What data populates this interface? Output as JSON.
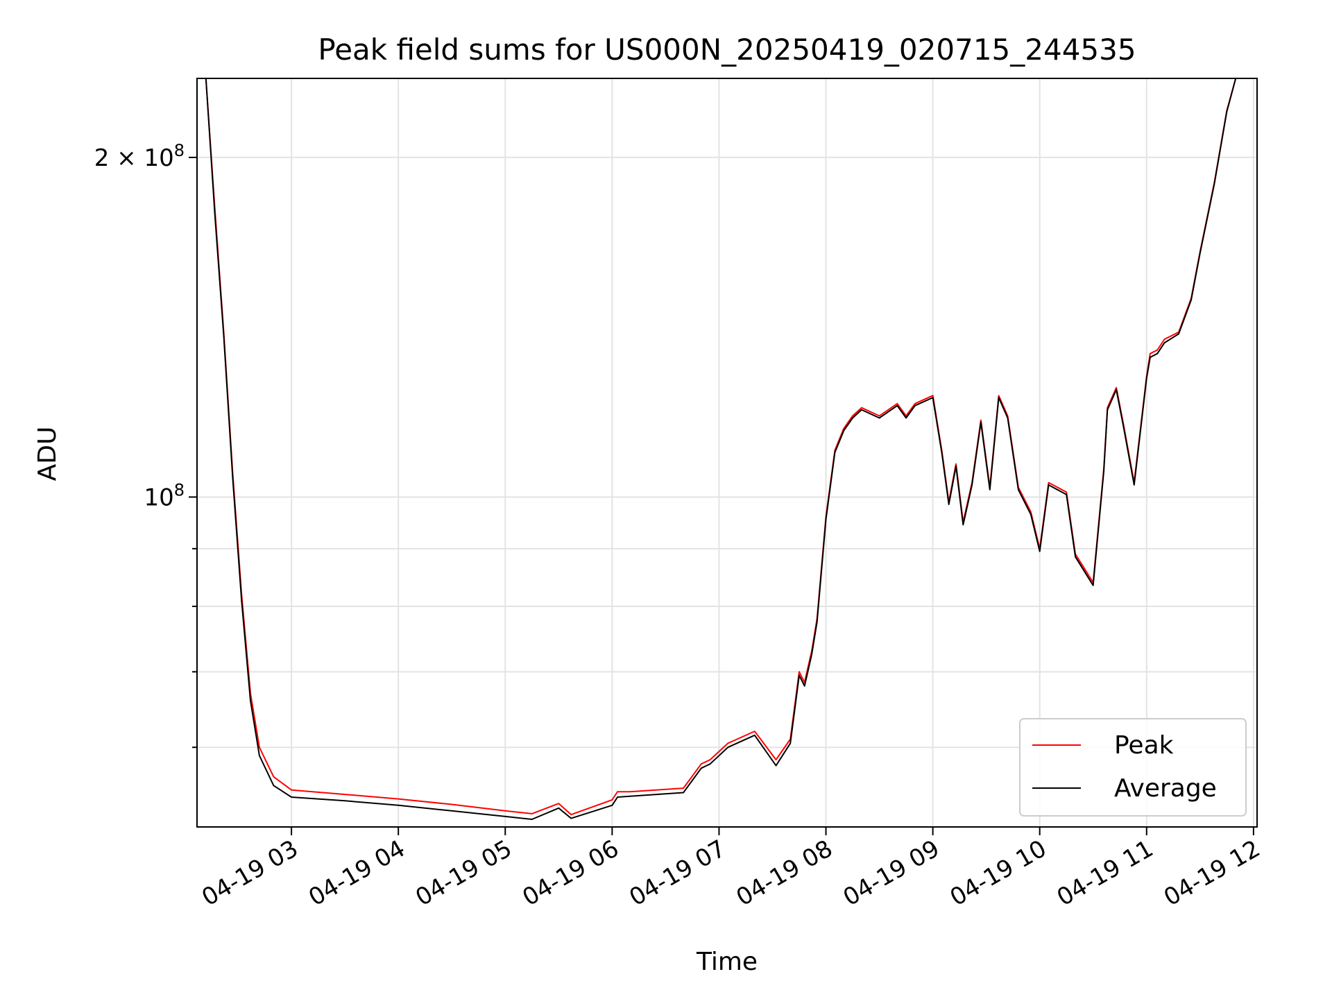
{
  "chart_data": {
    "type": "line",
    "title": "Peak field sums for US000N_20250419_020715_244535",
    "xlabel": "Time",
    "ylabel": "ADU",
    "y_scale": "log",
    "ylim": [
      51000000,
      235000000
    ],
    "xlim": [
      "2025-04-19 02:07",
      "2025-04-19 12:02"
    ],
    "x_tick_labels": [
      "04-19 03",
      "04-19 04",
      "04-19 05",
      "04-19 06",
      "04-19 07",
      "04-19 08",
      "04-19 09",
      "04-19 10",
      "04-19 11",
      "04-19 12"
    ],
    "y_major_ticks": [
      {
        "value": 100000000,
        "label_base": "10",
        "label_exp": "8"
      },
      {
        "value": 200000000,
        "label_mult": "2 × 10",
        "label_exp": "8"
      }
    ],
    "y_minor_ticks": [
      60000000,
      70000000,
      80000000,
      90000000
    ],
    "grid": true,
    "legend_position": "lower-right",
    "series": [
      {
        "name": "Peak",
        "color": "#ff0000",
        "x": [
          "2025-04-19 02:07",
          "2025-04-19 02:12",
          "2025-04-19 02:17",
          "2025-04-19 02:22",
          "2025-04-19 02:27",
          "2025-04-19 02:32",
          "2025-04-19 02:37",
          "2025-04-19 02:42",
          "2025-04-19 02:50",
          "2025-04-19 03:00",
          "2025-04-19 03:30",
          "2025-04-19 04:00",
          "2025-04-19 04:30",
          "2025-04-19 05:00",
          "2025-04-19 05:15",
          "2025-04-19 05:30",
          "2025-04-19 05:37",
          "2025-04-19 06:00",
          "2025-04-19 06:03",
          "2025-04-19 06:10",
          "2025-04-19 06:40",
          "2025-04-19 06:50",
          "2025-04-19 06:55",
          "2025-04-19 07:05",
          "2025-04-19 07:20",
          "2025-04-19 07:32",
          "2025-04-19 07:40",
          "2025-04-19 07:45",
          "2025-04-19 07:48",
          "2025-04-19 07:52",
          "2025-04-19 07:55",
          "2025-04-19 08:00",
          "2025-04-19 08:05",
          "2025-04-19 08:10",
          "2025-04-19 08:15",
          "2025-04-19 08:20",
          "2025-04-19 08:30",
          "2025-04-19 08:40",
          "2025-04-19 08:45",
          "2025-04-19 08:50",
          "2025-04-19 09:00",
          "2025-04-19 09:05",
          "2025-04-19 09:09",
          "2025-04-19 09:13",
          "2025-04-19 09:17",
          "2025-04-19 09:22",
          "2025-04-19 09:27",
          "2025-04-19 09:32",
          "2025-04-19 09:37",
          "2025-04-19 09:42",
          "2025-04-19 09:48",
          "2025-04-19 09:55",
          "2025-04-19 10:00",
          "2025-04-19 10:05",
          "2025-04-19 10:15",
          "2025-04-19 10:20",
          "2025-04-19 10:30",
          "2025-04-19 10:36",
          "2025-04-19 10:38",
          "2025-04-19 10:43",
          "2025-04-19 10:47",
          "2025-04-19 10:53",
          "2025-04-19 11:00",
          "2025-04-19 11:02",
          "2025-04-19 11:06",
          "2025-04-19 11:10",
          "2025-04-19 11:18",
          "2025-04-19 11:25",
          "2025-04-19 11:30",
          "2025-04-19 11:38",
          "2025-04-19 11:45",
          "2025-04-19 11:50",
          "2025-04-19 11:53",
          "2025-04-19 11:56",
          "2025-04-19 12:00"
        ],
        "y": [
          235000000,
          235000000,
          180000000,
          140000000,
          105000000,
          82000000,
          67000000,
          60000000,
          56500000,
          55000000,
          54500000,
          54000000,
          53400000,
          52700000,
          52400000,
          53500000,
          52300000,
          53900000,
          54800000,
          54800000,
          55200000,
          58000000,
          58500000,
          60500000,
          62000000,
          58500000,
          61000000,
          70000000,
          68500000,
          73000000,
          78000000,
          96000000,
          110000000,
          115000000,
          118000000,
          120000000,
          118000000,
          121000000,
          118000000,
          121000000,
          123000000,
          110000000,
          99000000,
          107000000,
          95000000,
          103000000,
          117000000,
          102000000,
          123000000,
          118000000,
          102000000,
          97000000,
          90000000,
          103000000,
          101000000,
          89000000,
          84000000,
          106000000,
          120000000,
          125000000,
          116000000,
          103000000,
          128000000,
          134000000,
          135000000,
          138000000,
          140000000,
          150000000,
          165000000,
          190000000,
          220000000,
          235000000,
          235000000,
          235000000,
          235000000
        ]
      },
      {
        "name": "Average",
        "color": "#000000",
        "x": [
          "2025-04-19 02:07",
          "2025-04-19 02:12",
          "2025-04-19 02:17",
          "2025-04-19 02:22",
          "2025-04-19 02:27",
          "2025-04-19 02:32",
          "2025-04-19 02:37",
          "2025-04-19 02:42",
          "2025-04-19 02:50",
          "2025-04-19 03:00",
          "2025-04-19 03:30",
          "2025-04-19 04:00",
          "2025-04-19 04:30",
          "2025-04-19 05:00",
          "2025-04-19 05:15",
          "2025-04-19 05:30",
          "2025-04-19 05:37",
          "2025-04-19 06:00",
          "2025-04-19 06:03",
          "2025-04-19 06:10",
          "2025-04-19 06:40",
          "2025-04-19 06:50",
          "2025-04-19 06:55",
          "2025-04-19 07:05",
          "2025-04-19 07:20",
          "2025-04-19 07:32",
          "2025-04-19 07:40",
          "2025-04-19 07:45",
          "2025-04-19 07:48",
          "2025-04-19 07:52",
          "2025-04-19 07:55",
          "2025-04-19 08:00",
          "2025-04-19 08:05",
          "2025-04-19 08:10",
          "2025-04-19 08:15",
          "2025-04-19 08:20",
          "2025-04-19 08:30",
          "2025-04-19 08:40",
          "2025-04-19 08:45",
          "2025-04-19 08:50",
          "2025-04-19 09:00",
          "2025-04-19 09:05",
          "2025-04-19 09:09",
          "2025-04-19 09:13",
          "2025-04-19 09:17",
          "2025-04-19 09:22",
          "2025-04-19 09:27",
          "2025-04-19 09:32",
          "2025-04-19 09:37",
          "2025-04-19 09:42",
          "2025-04-19 09:48",
          "2025-04-19 09:55",
          "2025-04-19 10:00",
          "2025-04-19 10:05",
          "2025-04-19 10:15",
          "2025-04-19 10:20",
          "2025-04-19 10:30",
          "2025-04-19 10:36",
          "2025-04-19 10:38",
          "2025-04-19 10:43",
          "2025-04-19 10:47",
          "2025-04-19 10:53",
          "2025-04-19 11:00",
          "2025-04-19 11:02",
          "2025-04-19 11:06",
          "2025-04-19 11:10",
          "2025-04-19 11:18",
          "2025-04-19 11:25",
          "2025-04-19 11:30",
          "2025-04-19 11:38",
          "2025-04-19 11:45",
          "2025-04-19 11:50",
          "2025-04-19 11:53",
          "2025-04-19 11:56",
          "2025-04-19 12:00"
        ],
        "y": [
          235000000,
          235000000,
          178000000,
          139000000,
          104000000,
          81000000,
          66000000,
          59000000,
          55500000,
          54200000,
          53800000,
          53300000,
          52700000,
          52100000,
          51800000,
          53000000,
          51900000,
          53300000,
          54200000,
          54300000,
          54700000,
          57500000,
          58000000,
          60000000,
          61500000,
          57800000,
          60500000,
          69500000,
          68000000,
          72500000,
          77500000,
          95500000,
          109500000,
          114500000,
          117500000,
          119500000,
          117500000,
          120500000,
          117500000,
          120500000,
          122500000,
          109500000,
          98500000,
          106500000,
          94500000,
          102500000,
          116500000,
          101500000,
          122500000,
          117500000,
          101500000,
          96500000,
          89500000,
          102500000,
          100500000,
          88500000,
          83500000,
          105500000,
          119500000,
          124500000,
          115500000,
          102500000,
          127500000,
          133000000,
          134000000,
          137000000,
          139500000,
          149500000,
          164500000,
          189500000,
          219500000,
          235000000,
          235000000,
          235000000,
          235000000
        ]
      }
    ]
  }
}
